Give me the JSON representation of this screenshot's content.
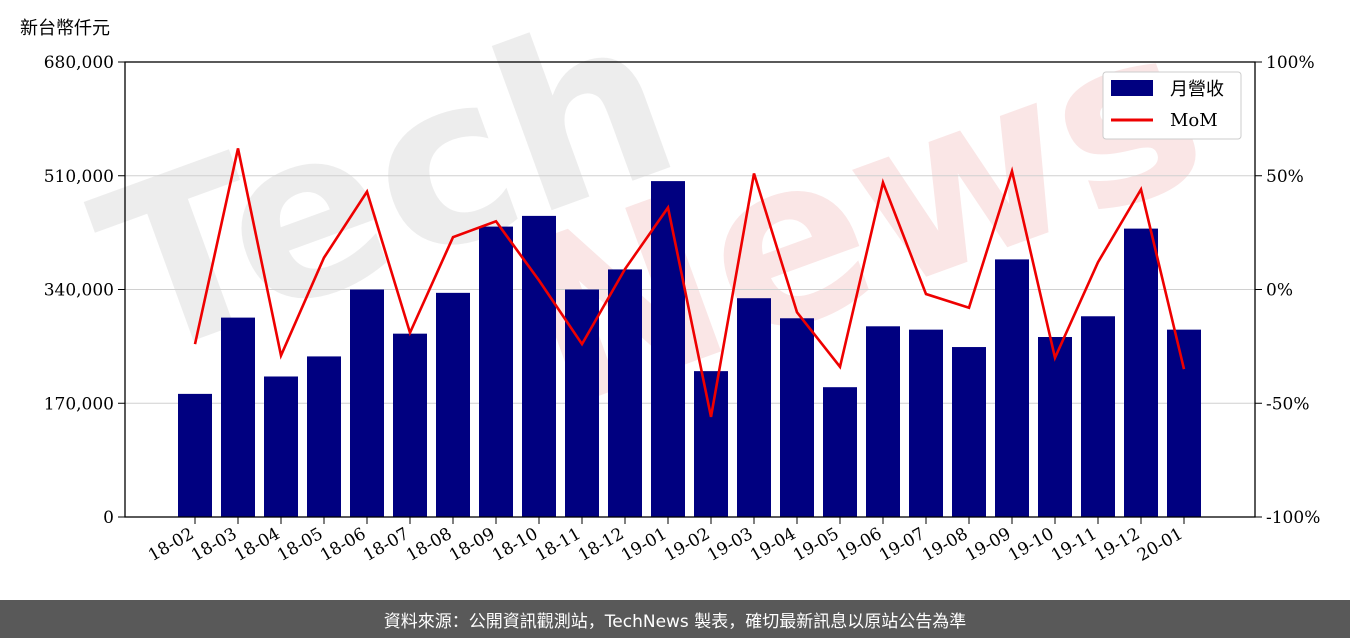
{
  "chart_data": {
    "type": "bar+line",
    "unit_label": "新台幣仟元",
    "categories": [
      "18-02",
      "18-03",
      "18-04",
      "18-05",
      "18-06",
      "18-07",
      "18-08",
      "18-09",
      "18-10",
      "18-11",
      "18-12",
      "19-01",
      "19-02",
      "19-03",
      "19-04",
      "19-05",
      "19-06",
      "19-07",
      "19-08",
      "19-09",
      "19-10",
      "19-11",
      "19-12",
      "20-01"
    ],
    "series": [
      {
        "name": "月營收",
        "type": "bar",
        "axis": "left",
        "color": "#000080",
        "values": [
          184000,
          298000,
          210000,
          240000,
          340000,
          274000,
          335000,
          434000,
          450000,
          340000,
          370000,
          502000,
          218000,
          327000,
          297000,
          194000,
          285000,
          280000,
          254000,
          385000,
          269000,
          300000,
          431000,
          280000
        ]
      },
      {
        "name": "MoM",
        "type": "line",
        "axis": "right",
        "color": "#ee0000",
        "values": [
          -24,
          62,
          -29,
          14,
          43,
          -19,
          23,
          30,
          4,
          -24,
          9,
          36,
          -56,
          51,
          -10,
          -34,
          47,
          -2,
          -8,
          52,
          -30,
          12,
          44,
          -35
        ]
      }
    ],
    "left_axis": {
      "ticks": [
        "0",
        "170,000",
        "340,000",
        "510,000",
        "680,000"
      ],
      "ylim": [
        0,
        680000
      ]
    },
    "right_axis": {
      "ticks": [
        "-100%",
        "-50%",
        "0%",
        "50%",
        "100%"
      ],
      "ylim": [
        -100,
        100
      ]
    },
    "grid": "horizontal",
    "legend": {
      "placement": "top-right",
      "entries": [
        "月營收",
        "MoM"
      ]
    }
  },
  "watermark": {
    "left": "Tech",
    "right": "News"
  },
  "footer": {
    "text": "資料來源：公開資訊觀測站，TechNews 製表，確切最新訊息以原站公告為準"
  }
}
